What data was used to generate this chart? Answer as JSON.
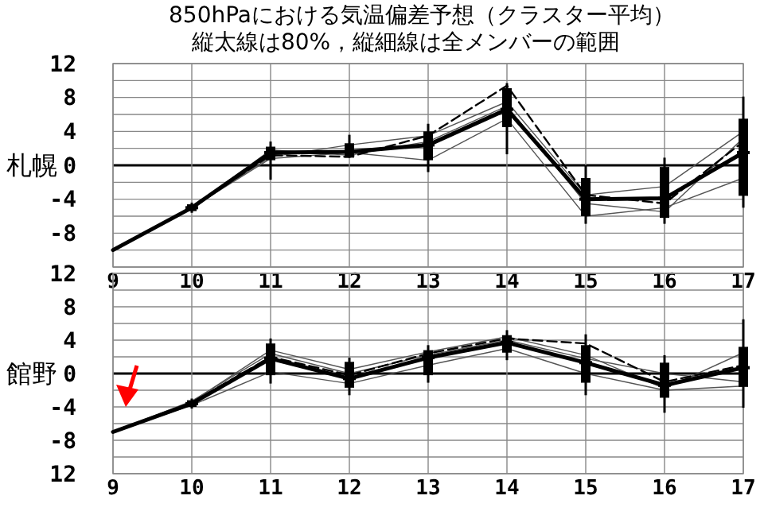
{
  "chart_data": [
    {
      "type": "line",
      "title": "850hPaにおける気温偏差予想（クラスター平均）",
      "subtitle": "縦太線は80%，縦細線は全メンバーの範囲",
      "ylabel": "札幌",
      "categories": [
        "9",
        "10",
        "11",
        "12",
        "13",
        "14",
        "15",
        "16",
        "17"
      ],
      "ylim": [
        -12,
        12
      ],
      "yticks": [
        {
          "value": -12,
          "label": null
        },
        {
          "value": -10,
          "label": null
        },
        -8,
        {
          "value": -6,
          "label": null
        },
        -4,
        {
          "value": -2,
          "label": null
        },
        0,
        {
          "value": 2,
          "label": null
        },
        4,
        {
          "value": 6,
          "label": null
        },
        8,
        {
          "value": 10,
          "label": null
        },
        12
      ],
      "grid": true,
      "series": [
        {
          "color": "#555555",
          "line_style": "solid",
          "values": [
            -10,
            -5,
            1.0,
            2.4,
            3.5,
            7.5,
            -3.5,
            -2.5,
            4.0
          ]
        },
        {
          "color": "#555555",
          "line_style": "solid",
          "values": [
            -10,
            -5,
            0.8,
            1.5,
            0.6,
            5.5,
            -6.0,
            -5.0,
            -1.5
          ]
        },
        {
          "color": "#555555",
          "line_style": "solid",
          "values": [
            -10,
            -5,
            1.8,
            1.2,
            2.8,
            7.0,
            -4.5,
            -5.5,
            3.2
          ]
        },
        {
          "color": "#000000",
          "line_style": "dashed",
          "values": [
            -10,
            -5,
            1.2,
            1.0,
            3.5,
            9.4,
            -3.5,
            -4.5,
            2.8
          ]
        },
        {
          "color": "#000000",
          "line_style": "solid",
          "values": [
            -10,
            -5,
            1.5,
            1.6,
            2.4,
            6.6,
            -4.0,
            -3.9,
            1.5
          ]
        },
        {
          "type": "box",
          "color": "#000000",
          "boxes": [
            null,
            {
              "low": -5.6,
              "q1": -5.4,
              "median": -5,
              "q3": -4.6,
              "high": -4.4
            },
            {
              "low": -1.7,
              "q1": 0.6,
              "median": 1.5,
              "q3": 2.2,
              "high": 2.8
            },
            {
              "low": 0.9,
              "q1": 0.9,
              "median": 1.6,
              "q3": 2.6,
              "high": 3.6
            },
            {
              "low": -0.8,
              "q1": 0.6,
              "median": 2.4,
              "q3": 4.0,
              "high": 4.9
            },
            {
              "low": 1.3,
              "q1": 4.5,
              "median": 6.6,
              "q3": 9.1,
              "high": 9.7
            },
            {
              "low": -6.9,
              "q1": -6.0,
              "median": -4.0,
              "q3": -1.5,
              "high": 0
            },
            {
              "low": -6.9,
              "q1": -6.2,
              "median": -3.9,
              "q3": -0.2,
              "high": 0.9
            },
            {
              "low": -5.0,
              "q1": -3.6,
              "median": 1.5,
              "q3": 5.5,
              "high": 8.1
            }
          ]
        }
      ]
    },
    {
      "type": "line",
      "ylabel": "館野",
      "categories": [
        "9",
        "10",
        "11",
        "12",
        "13",
        "14",
        "15",
        "16",
        "17"
      ],
      "ylim": [
        -12,
        12
      ],
      "yticks": [
        {
          "value": -12,
          "label": "12"
        },
        {
          "value": -10,
          "label": null
        },
        -8,
        {
          "value": -6,
          "label": null
        },
        -4,
        {
          "value": -2,
          "label": null
        },
        0,
        {
          "value": 2,
          "label": null
        },
        4,
        {
          "value": 6,
          "label": null
        },
        8,
        {
          "value": 10,
          "label": null
        },
        12
      ],
      "grid": true,
      "series": [
        {
          "color": "#555555",
          "line_style": "solid",
          "values": [
            -7,
            -3.4,
            2.8,
            0.5,
            2.6,
            4.4,
            2.2,
            -1.8,
            2.5
          ]
        },
        {
          "color": "#555555",
          "line_style": "solid",
          "values": [
            -7,
            -3.8,
            0.2,
            -1.2,
            1.0,
            3.0,
            0,
            -2.0,
            -1.5
          ]
        },
        {
          "color": "#555555",
          "line_style": "solid",
          "values": [
            -7,
            -3.3,
            2.4,
            0,
            2.2,
            4.0,
            1.8,
            0,
            -1.0
          ]
        },
        {
          "color": "#000000",
          "line_style": "dashed",
          "values": [
            -7,
            -3.5,
            2.0,
            -0.2,
            2.4,
            4.2,
            3.6,
            -1.0,
            1.0
          ]
        },
        {
          "color": "#000000",
          "line_style": "solid",
          "values": [
            -7,
            -3.6,
            1.8,
            -0.6,
            1.9,
            3.7,
            1.3,
            -1.4,
            0.7
          ]
        },
        {
          "type": "box",
          "color": "#000000",
          "boxes": [
            null,
            {
              "low": -4.2,
              "q1": -4.0,
              "median": -3.6,
              "q3": -3.2,
              "high": -3.0
            },
            {
              "low": -1.2,
              "q1": -0.2,
              "median": 1.8,
              "q3": 3.6,
              "high": 4.2
            },
            {
              "low": -2.6,
              "q1": -1.7,
              "median": -0.6,
              "q3": 1.4,
              "high": 1.9
            },
            {
              "low": -1.1,
              "q1": -0.2,
              "median": 1.9,
              "q3": 2.8,
              "high": 3.4
            },
            {
              "low": 1.6,
              "q1": 2.5,
              "median": 3.7,
              "q3": 4.6,
              "high": 5.2
            },
            {
              "low": -2.6,
              "q1": -1.1,
              "median": 1.3,
              "q3": 3.4,
              "high": 4.7
            },
            {
              "low": -4.7,
              "q1": -2.9,
              "median": -1.4,
              "q3": 1.3,
              "high": 2.2
            },
            {
              "low": -4.1,
              "q1": -1.6,
              "median": 0.7,
              "q3": 3.2,
              "high": 6.5
            }
          ]
        }
      ]
    }
  ]
}
